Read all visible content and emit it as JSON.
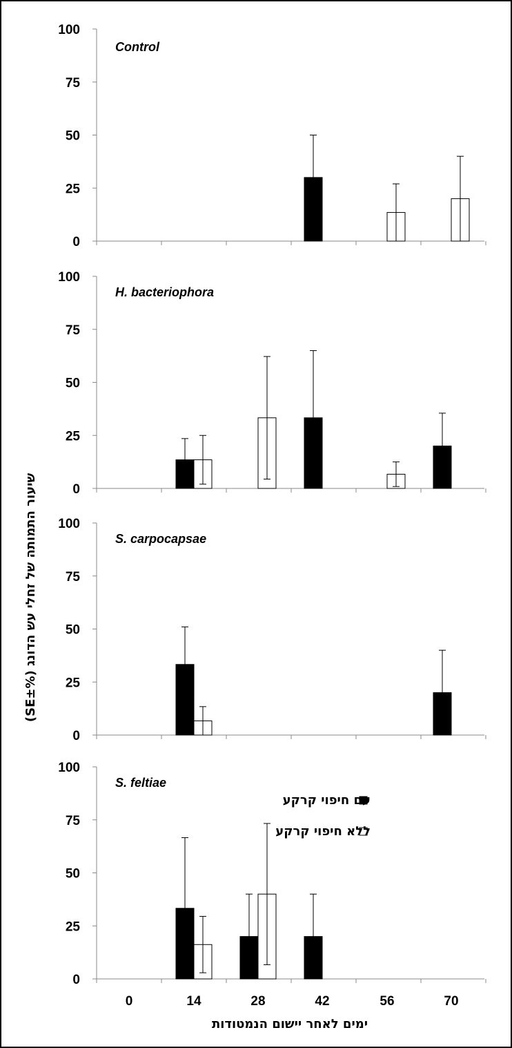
{
  "chart_data": {
    "type": "bar",
    "categories": [
      "0",
      "14",
      "28",
      "42",
      "56",
      "70"
    ],
    "xlabel": "ימים לאחר יישום הנמטודות",
    "ylabel": "שיעור התמותה של זחלי עש הדונג (%±SE)",
    "ylim": [
      0,
      100
    ],
    "yticks": [
      "0",
      "25",
      "50",
      "75",
      "100"
    ],
    "legend": {
      "position": "top-right of bottom panel",
      "entries": [
        {
          "label": "עם חיפוי קרקע",
          "color": "#000000"
        },
        {
          "label": "ללא חיפוי קרקע",
          "color": "#ffffff"
        }
      ]
    },
    "panels": [
      {
        "title": "Control",
        "series": [
          {
            "values": [
              0,
              0,
              0,
              30,
              0,
              0
            ],
            "errors": [
              0,
              0,
              0,
              20,
              0,
              0
            ]
          },
          {
            "values": [
              0,
              0,
              0,
              0,
              13.5,
              20
            ],
            "errors": [
              0,
              0,
              0,
              0,
              13.5,
              20
            ]
          }
        ]
      },
      {
        "title": "H. bacteriophora",
        "series": [
          {
            "values": [
              0,
              13.5,
              0,
              33.3,
              0,
              20
            ],
            "errors": [
              0,
              10,
              0,
              31.7,
              0,
              15.5
            ]
          },
          {
            "values": [
              0,
              13.5,
              33.3,
              0,
              6.7,
              0
            ],
            "errors": [
              0,
              11.5,
              28.9,
              0,
              5.8,
              0
            ]
          }
        ]
      },
      {
        "title": "S. carpocapsae",
        "series": [
          {
            "values": [
              0,
              33.3,
              0,
              0,
              0,
              20
            ],
            "errors": [
              0,
              17.7,
              0,
              0,
              0,
              20
            ]
          },
          {
            "values": [
              0,
              6.7,
              0,
              0,
              0,
              0
            ],
            "errors": [
              0,
              6.7,
              0,
              0,
              0,
              0
            ]
          }
        ]
      },
      {
        "title": "S. feltiae",
        "series": [
          {
            "values": [
              0,
              33.3,
              20,
              20,
              0,
              0
            ],
            "errors": [
              0,
              33.3,
              20,
              20,
              0,
              0
            ]
          },
          {
            "values": [
              0,
              16.2,
              40,
              0,
              0,
              0
            ],
            "errors": [
              0,
              13.3,
              33.3,
              0,
              0,
              0
            ]
          }
        ]
      }
    ]
  }
}
